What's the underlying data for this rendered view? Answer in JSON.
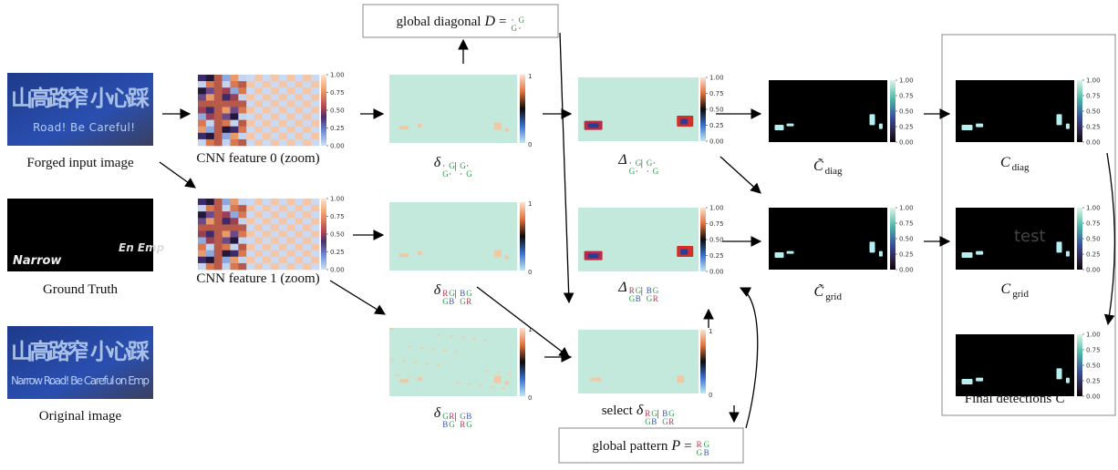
{
  "inputs": [
    {
      "caption": "Forged input image",
      "sign_text": [
        "山高路窄 小心踩",
        "Road! Be Careful!"
      ]
    },
    {
      "caption": "Ground Truth",
      "sign_text": [
        "Narrow",
        "En Emp"
      ]
    },
    {
      "caption": "Original image",
      "sign_text": [
        "山高路窄 小心踩",
        "Narrow Road! Be Careful on Emp"
      ]
    }
  ],
  "features": [
    {
      "caption": "CNN feature 0 (zoom)"
    },
    {
      "caption": "CNN feature 1 (zoom)"
    }
  ],
  "colorbar_ticks": [
    "1.00",
    "0.75",
    "0.50",
    "0.25",
    "0.00"
  ],
  "colorbar_ends": [
    "1",
    "0"
  ],
  "sub_separator": "|",
  "letter_colors": {
    "R": "#b8324e",
    "G": "#2f9a4f",
    "B": "#3550b0",
    "·": "#111111"
  },
  "deltas": [
    {
      "symbol": "δ",
      "sub": [
        [
          "·",
          "G",
          "G",
          "·"
        ],
        [
          "G",
          "·",
          "·",
          "G"
        ]
      ]
    },
    {
      "symbol": "δ",
      "sub": [
        [
          "R",
          "G",
          "B",
          "G"
        ],
        [
          "G",
          "B",
          "G",
          "R"
        ]
      ]
    },
    {
      "symbol": "δ",
      "sub": [
        [
          "G",
          "R",
          "G",
          "B"
        ],
        [
          "B",
          "G",
          "R",
          "G"
        ]
      ]
    }
  ],
  "differences": [
    {
      "symbol": "Δ",
      "sub": [
        [
          "·",
          "G",
          "G",
          "·"
        ],
        [
          "G",
          "·",
          "·",
          "G"
        ]
      ]
    },
    {
      "symbol": "Δ",
      "sub": [
        [
          "R",
          "G",
          "B",
          "G"
        ],
        [
          "G",
          "B",
          "G",
          "R"
        ]
      ]
    },
    {
      "prefix": "select",
      "symbol": "δ",
      "sub": [
        [
          "R",
          "G",
          "B",
          "G"
        ],
        [
          "G",
          "B",
          "G",
          "R"
        ]
      ]
    }
  ],
  "global_diagonal": {
    "text": "global diagonal",
    "symbol": "D",
    "equals": "=",
    "matrix": [
      [
        "·",
        "G"
      ],
      [
        "G",
        "·"
      ]
    ]
  },
  "global_pattern": {
    "text": "global pattern",
    "symbol": "P",
    "equals": "=",
    "matrix": [
      [
        "R",
        "G"
      ],
      [
        "G",
        "B"
      ]
    ]
  },
  "confidences": [
    {
      "symbol": "C̃",
      "sub": "diag"
    },
    {
      "symbol": "C̃",
      "sub": "grid"
    }
  ],
  "detections": [
    {
      "symbol": "C",
      "sub": "diag"
    },
    {
      "symbol": "C",
      "sub": "grid"
    },
    {
      "text": "Final detections",
      "symbol": "C"
    }
  ],
  "overlay_text": "test"
}
